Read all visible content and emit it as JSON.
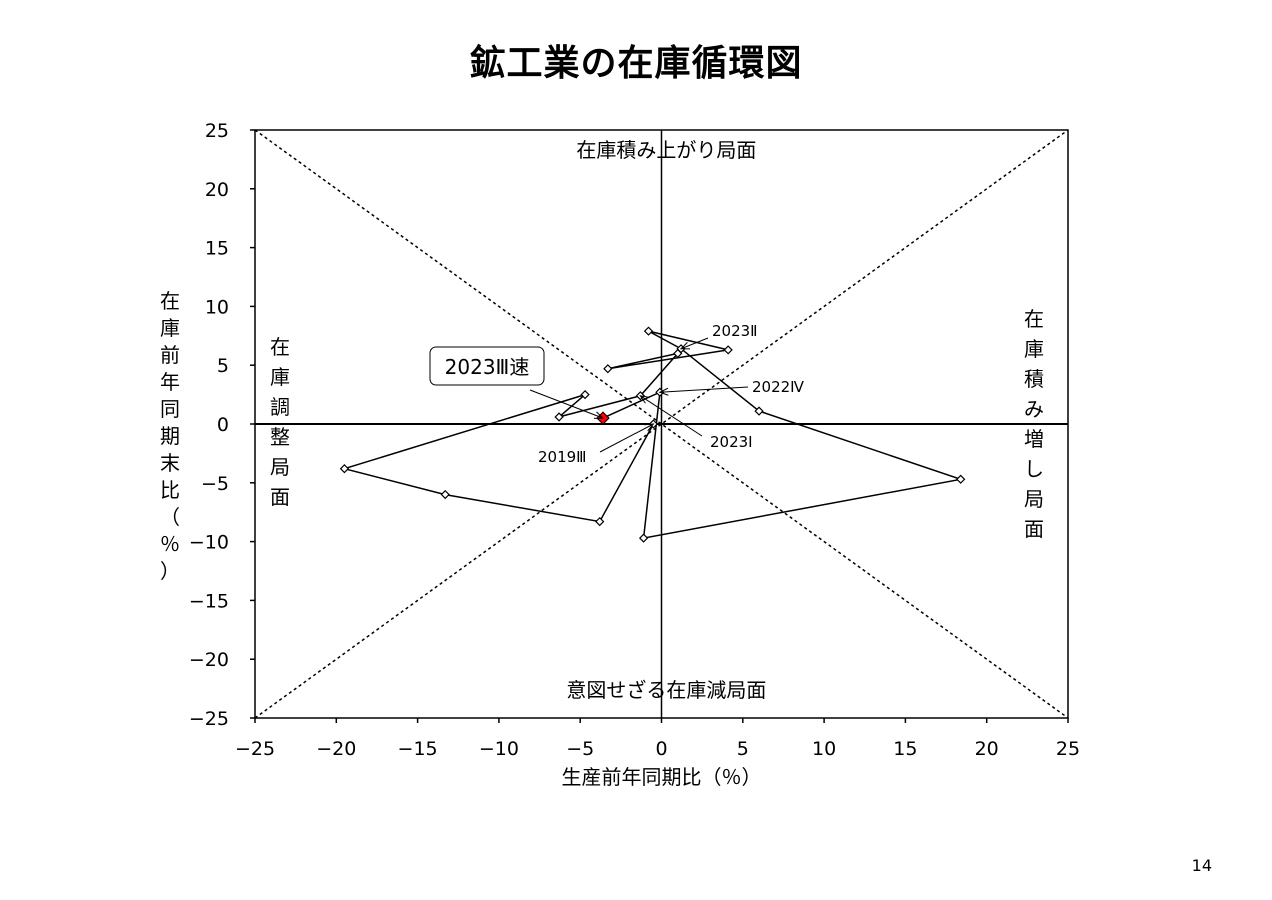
{
  "page": {
    "title": "鉱工業の在庫循環図",
    "page_number": "14"
  },
  "chart_data": {
    "type": "line",
    "title": "鉱工業の在庫循環図",
    "xlabel": "生産前年同期比（％）",
    "ylabel": "在庫前年同期末比（％）",
    "xlim": [
      -25,
      25
    ],
    "ylim": [
      -25,
      25
    ],
    "xticks": [
      "−25",
      "−20",
      "−15",
      "−10",
      "−5",
      "0",
      "5",
      "10",
      "15",
      "20",
      "25"
    ],
    "yticks": [
      "25",
      "20",
      "15",
      "10",
      "5",
      "0",
      "−5",
      "−10",
      "−15",
      "−20",
      "−25"
    ],
    "grid": false,
    "reference_lines": "diagonals y = x and y = −x (dotted)",
    "quadrant_labels": {
      "top": "在庫積み上がり局面",
      "right": "在庫積み増し局面",
      "bottom": "意図せざる在庫減局面",
      "left": "在庫調整局面"
    },
    "series": [
      {
        "points": [
          {
            "x": -0.5,
            "y": 0.0
          },
          {
            "x": -3.8,
            "y": -8.3
          },
          {
            "x": -13.3,
            "y": -6.0
          },
          {
            "x": -19.5,
            "y": -3.8
          },
          {
            "x": -4.7,
            "y": 2.5
          },
          {
            "x": -6.3,
            "y": 0.6
          },
          {
            "x": -1.3,
            "y": 2.4
          },
          {
            "x": 1.0,
            "y": 6.0
          },
          {
            "x": -3.3,
            "y": 4.7
          },
          {
            "x": 4.1,
            "y": 6.3
          },
          {
            "x": -0.8,
            "y": 7.9
          },
          {
            "x": 1.2,
            "y": 6.4
          },
          {
            "x": 6.0,
            "y": 1.1
          },
          {
            "x": 18.4,
            "y": -4.7
          },
          {
            "x": -1.1,
            "y": -9.7
          },
          {
            "x": -0.1,
            "y": 2.7
          },
          {
            "x": -3.6,
            "y": 0.5
          }
        ],
        "highlight": {
          "label": "2023Ⅲ速",
          "x": -3.6,
          "y": 0.5,
          "color": "#ff0000"
        }
      }
    ],
    "annotations": [
      {
        "label": "2019Ⅲ",
        "x": -0.5,
        "y": 0.0
      },
      {
        "label": "2022Ⅳ",
        "x": -0.1,
        "y": 2.7
      },
      {
        "label": "2023Ⅰ",
        "x": -1.3,
        "y": 2.4
      },
      {
        "label": "2023Ⅱ",
        "x": 1.2,
        "y": 6.4
      },
      {
        "label": "2023Ⅲ速",
        "x": -3.6,
        "y": 0.5
      }
    ],
    "colors": {
      "line": "#000000",
      "marker_fill": "#ffffff",
      "highlight": "#ff0000"
    }
  }
}
